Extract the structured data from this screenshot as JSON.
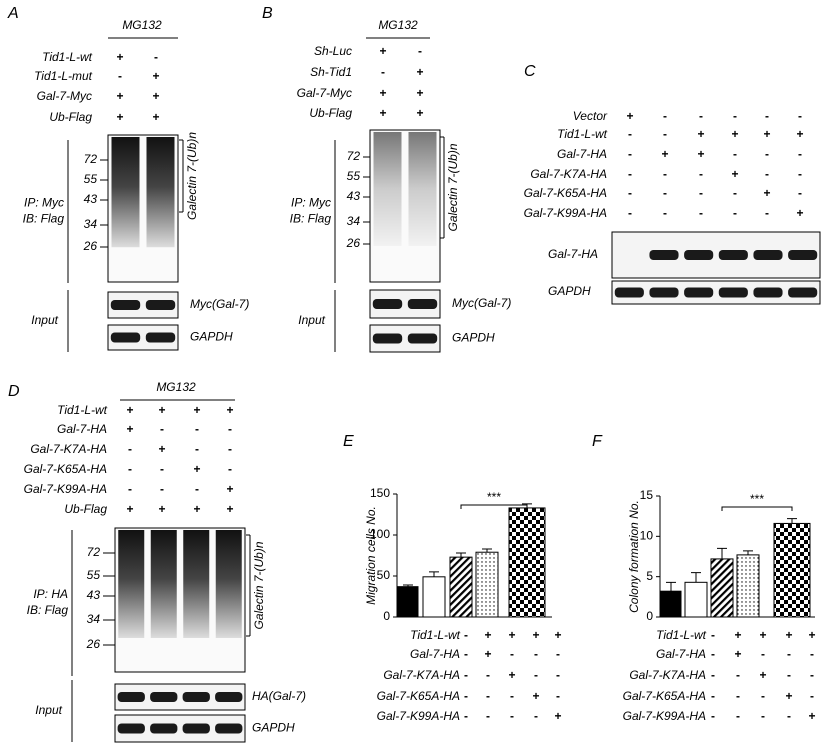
{
  "panel_a": {
    "label": "A",
    "treatment": "MG132",
    "rows": [
      {
        "name": "Tid1-L-wt",
        "signs": [
          "+",
          "-"
        ]
      },
      {
        "name": "Tid1-L-mut",
        "signs": [
          "-",
          "+"
        ]
      },
      {
        "name": "Gal-7-Myc",
        "signs": [
          "+",
          "+"
        ]
      },
      {
        "name": "Ub-Flag",
        "signs": [
          "+",
          "+"
        ]
      }
    ],
    "markers": [
      72,
      55,
      43,
      34,
      26
    ],
    "ip_label": "IP: Myc",
    "ib_label": "IB: Flag",
    "smear_label": "Galectin 7-(Ub)n",
    "input_label": "Input",
    "blot_labels": [
      "Myc(Gal-7)",
      "GAPDH"
    ]
  },
  "panel_b": {
    "label": "B",
    "treatment": "MG132",
    "rows": [
      {
        "name": "Sh-Luc",
        "signs": [
          "+",
          "-"
        ]
      },
      {
        "name": "Sh-Tid1",
        "signs": [
          "-",
          "+"
        ]
      },
      {
        "name": "Gal-7-Myc",
        "signs": [
          "+",
          "+"
        ]
      },
      {
        "name": "Ub-Flag",
        "signs": [
          "+",
          "+"
        ]
      }
    ],
    "markers": [
      72,
      55,
      43,
      34,
      26
    ],
    "ip_label": "IP: Myc",
    "ib_label": "IB: Flag",
    "smear_label": "Galectin 7-(Ub)n",
    "input_label": "Input",
    "blot_labels": [
      "Myc(Gal-7)",
      "GAPDH"
    ]
  },
  "panel_c": {
    "label": "C",
    "rows": [
      {
        "name": "Vector",
        "signs": [
          "+",
          "-",
          "-",
          "-",
          "-",
          "-"
        ]
      },
      {
        "name": "Tid1-L-wt",
        "signs": [
          "-",
          "-",
          "+",
          "+",
          "+",
          "+"
        ]
      },
      {
        "name": "Gal-7-HA",
        "signs": [
          "-",
          "+",
          "+",
          "-",
          "-",
          "-"
        ]
      },
      {
        "name": "Gal-7-K7A-HA",
        "signs": [
          "-",
          "-",
          "-",
          "+",
          "-",
          "-"
        ]
      },
      {
        "name": "Gal-7-K65A-HA",
        "signs": [
          "-",
          "-",
          "-",
          "-",
          "+",
          "-"
        ]
      },
      {
        "name": "Gal-7-K99A-HA",
        "signs": [
          "-",
          "-",
          "-",
          "-",
          "-",
          "+"
        ]
      }
    ],
    "blot_labels": [
      "Gal-7-HA",
      "GAPDH"
    ]
  },
  "panel_d": {
    "label": "D",
    "treatment": "MG132",
    "rows": [
      {
        "name": "Tid1-L-wt",
        "signs": [
          "+",
          "+",
          "+",
          "+"
        ]
      },
      {
        "name": "Gal-7-HA",
        "signs": [
          "+",
          "-",
          "-",
          "-"
        ]
      },
      {
        "name": "Gal-7-K7A-HA",
        "signs": [
          "-",
          "+",
          "-",
          "-"
        ]
      },
      {
        "name": "Gal-7-K65A-HA",
        "signs": [
          "-",
          "-",
          "+",
          "-"
        ]
      },
      {
        "name": "Gal-7-K99A-HA",
        "signs": [
          "-",
          "-",
          "-",
          "+"
        ]
      },
      {
        "name": "Ub-Flag",
        "signs": [
          "+",
          "+",
          "+",
          "+"
        ]
      }
    ],
    "markers": [
      72,
      55,
      43,
      34,
      26
    ],
    "ip_label": "IP: HA",
    "ib_label": "IB: Flag",
    "smear_label": "Galectin 7-(Ub)n",
    "input_label": "Input",
    "blot_labels": [
      "HA(Gal-7)",
      "GAPDH"
    ]
  },
  "chart_data": [
    {
      "type": "bar",
      "label": "E",
      "y_label": "Migration cells No.",
      "values": [
        37,
        49,
        73,
        79,
        133
      ],
      "errors": [
        2,
        6,
        5,
        4,
        5
      ],
      "color": "#000000",
      "patterns": [
        "solid",
        "none",
        "diagonal",
        "dots",
        "checker"
      ],
      "ylim": [
        0,
        150
      ],
      "yticks": [
        0,
        50,
        100,
        150
      ],
      "significance": "***",
      "conditions": [
        {
          "name": "Tid1-L-wt",
          "signs": [
            "-",
            "+",
            "+",
            "+",
            "+"
          ]
        },
        {
          "name": "Gal-7-HA",
          "signs": [
            "-",
            "+",
            "-",
            "-",
            "-"
          ]
        },
        {
          "name": "Gal-7-K7A-HA",
          "signs": [
            "-",
            "-",
            "+",
            "-",
            "-"
          ]
        },
        {
          "name": "Gal-7-K65A-HA",
          "signs": [
            "-",
            "-",
            "-",
            "+",
            "-"
          ]
        },
        {
          "name": "Gal-7-K99A-HA",
          "signs": [
            "-",
            "-",
            "-",
            "-",
            "+"
          ]
        }
      ]
    },
    {
      "type": "bar",
      "label": "F",
      "y_label": "Colony formation No.",
      "values": [
        3.2,
        4.3,
        7.2,
        7.7,
        11.6
      ],
      "errors": [
        1.1,
        1.2,
        1.3,
        0.5,
        0.6
      ],
      "color": "#000000",
      "patterns": [
        "solid",
        "none",
        "diagonal",
        "dots",
        "checker"
      ],
      "ylim": [
        0,
        15
      ],
      "yticks": [
        0,
        5,
        10,
        15
      ],
      "significance": "***",
      "conditions": [
        {
          "name": "Tid1-L-wt",
          "signs": [
            "-",
            "+",
            "+",
            "+",
            "+"
          ]
        },
        {
          "name": "Gal-7-HA",
          "signs": [
            "-",
            "+",
            "-",
            "-",
            "-"
          ]
        },
        {
          "name": "Gal-7-K7A-HA",
          "signs": [
            "-",
            "-",
            "+",
            "-",
            "-"
          ]
        },
        {
          "name": "Gal-7-K65A-HA",
          "signs": [
            "-",
            "-",
            "-",
            "+",
            "-"
          ]
        },
        {
          "name": "Gal-7-K99A-HA",
          "signs": [
            "-",
            "-",
            "-",
            "-",
            "+"
          ]
        }
      ]
    }
  ]
}
